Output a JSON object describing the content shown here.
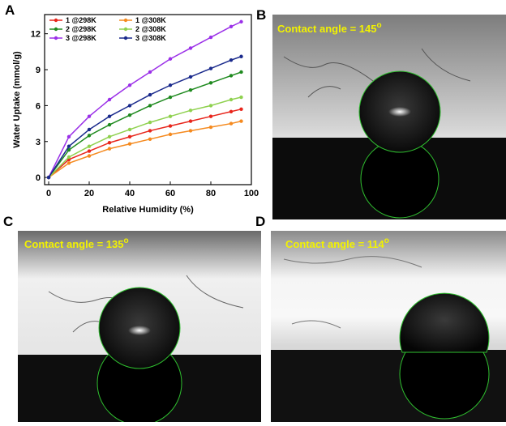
{
  "chart_data": {
    "type": "line",
    "panel": "A",
    "x_label": "Relative Humidity (%)",
    "y_label": "Water Uptake (mmol/g)",
    "x": [
      0,
      10,
      20,
      30,
      40,
      50,
      60,
      70,
      80,
      90,
      95
    ],
    "series": [
      {
        "name": "1 @298K",
        "color": "#e8261c",
        "values": [
          0,
          1.5,
          2.2,
          2.9,
          3.4,
          3.9,
          4.3,
          4.7,
          5.1,
          5.5,
          5.7
        ]
      },
      {
        "name": "1 @308K",
        "color": "#f58a1f",
        "values": [
          0,
          1.2,
          1.8,
          2.4,
          2.8,
          3.2,
          3.6,
          3.9,
          4.2,
          4.5,
          4.7
        ]
      },
      {
        "name": "2 @298K",
        "color": "#1f8a1f",
        "values": [
          0,
          2.3,
          3.5,
          4.4,
          5.2,
          6.0,
          6.7,
          7.3,
          7.9,
          8.5,
          8.8
        ]
      },
      {
        "name": "2 @308K",
        "color": "#8fd14f",
        "values": [
          0,
          1.7,
          2.6,
          3.4,
          4.0,
          4.6,
          5.1,
          5.6,
          6.0,
          6.5,
          6.7
        ]
      },
      {
        "name": "3 @298K",
        "color": "#9b30e8",
        "values": [
          0,
          3.4,
          5.1,
          6.5,
          7.7,
          8.8,
          9.9,
          10.8,
          11.7,
          12.6,
          13.0
        ]
      },
      {
        "name": "3 @308K",
        "color": "#1a2a8c",
        "values": [
          0,
          2.6,
          4.0,
          5.1,
          6.0,
          6.9,
          7.7,
          8.4,
          9.1,
          9.8,
          10.1
        ]
      }
    ],
    "xlim": [
      -2,
      100
    ],
    "xticks": [
      0,
      20,
      40,
      60,
      80,
      100
    ],
    "ylim": [
      -0.6,
      13.6
    ],
    "yticks": [
      0,
      3,
      6,
      9,
      12
    ],
    "legend": "upper left"
  },
  "panels": {
    "B": {
      "letter": "B",
      "label": {
        "text": "Contact angle = 145",
        "sup": "o"
      }
    },
    "C": {
      "letter": "C",
      "label": {
        "text": "Contact angle = 135",
        "sup": "o"
      }
    },
    "D": {
      "letter": "D",
      "label": {
        "text": "Contact angle = 114",
        "sup": "o"
      }
    }
  }
}
